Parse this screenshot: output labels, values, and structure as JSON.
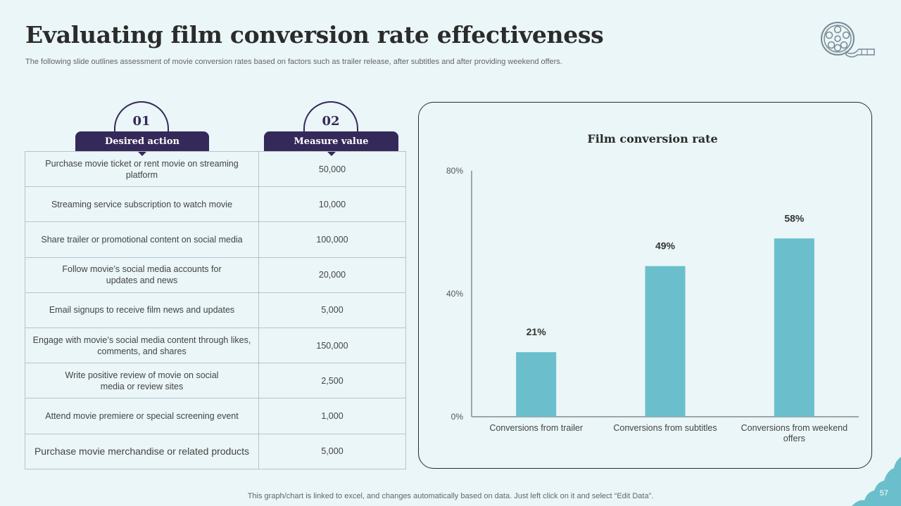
{
  "slide": {
    "title": "Evaluating film conversion rate effectiveness",
    "subtitle": "The following slide outlines assessment of movie conversion rates based on factors such as trailer release, after subtitles and after providing weekend offers.",
    "footer": "This graph/chart is linked to excel, and changes automatically based on data. Just left click on it and select “Edit Data”.",
    "page_number": "57",
    "logo_icon": "film-reel-icon"
  },
  "table": {
    "headers": [
      {
        "number": "01",
        "label": "Desired action"
      },
      {
        "number": "02",
        "label": "Measure value"
      }
    ],
    "rows": [
      {
        "action": "Purchase movie ticket or rent movie on streaming platform",
        "value": "50,000"
      },
      {
        "action": "Streaming service subscription to watch movie",
        "value": "10,000"
      },
      {
        "action": "Share trailer or promotional content on social media",
        "value": "100,000"
      },
      {
        "action": "Follow movie’s social media accounts for updates and news",
        "value": "20,000"
      },
      {
        "action": "Email signups to receive film news and updates",
        "value": "5,000"
      },
      {
        "action": "Engage with movie’s social media content through likes, comments, and shares",
        "value": "150,000"
      },
      {
        "action": "Write positive review of movie on social media or review sites",
        "value": "2,500"
      },
      {
        "action": "Attend movie premiere or special screening event",
        "value": "1,000"
      },
      {
        "action": "Purchase movie merchandise or related products",
        "value": "5,000"
      }
    ]
  },
  "colors": {
    "primary": "#35295a",
    "bar": "#6bbfcc",
    "background": "#eaf6f7"
  },
  "chart_data": {
    "type": "bar",
    "title": "Film conversion rate",
    "categories": [
      "Conversions from trailer",
      "Conversions from subtitles",
      "Conversions from weekend offers"
    ],
    "values": [
      21,
      49,
      58
    ],
    "value_labels": [
      "21%",
      "49%",
      "58%"
    ],
    "yticks": [
      "0%",
      "40%",
      "80%"
    ],
    "ylim": [
      0,
      80
    ],
    "xlabel": "",
    "ylabel": "",
    "grid": false,
    "legend": "none"
  }
}
